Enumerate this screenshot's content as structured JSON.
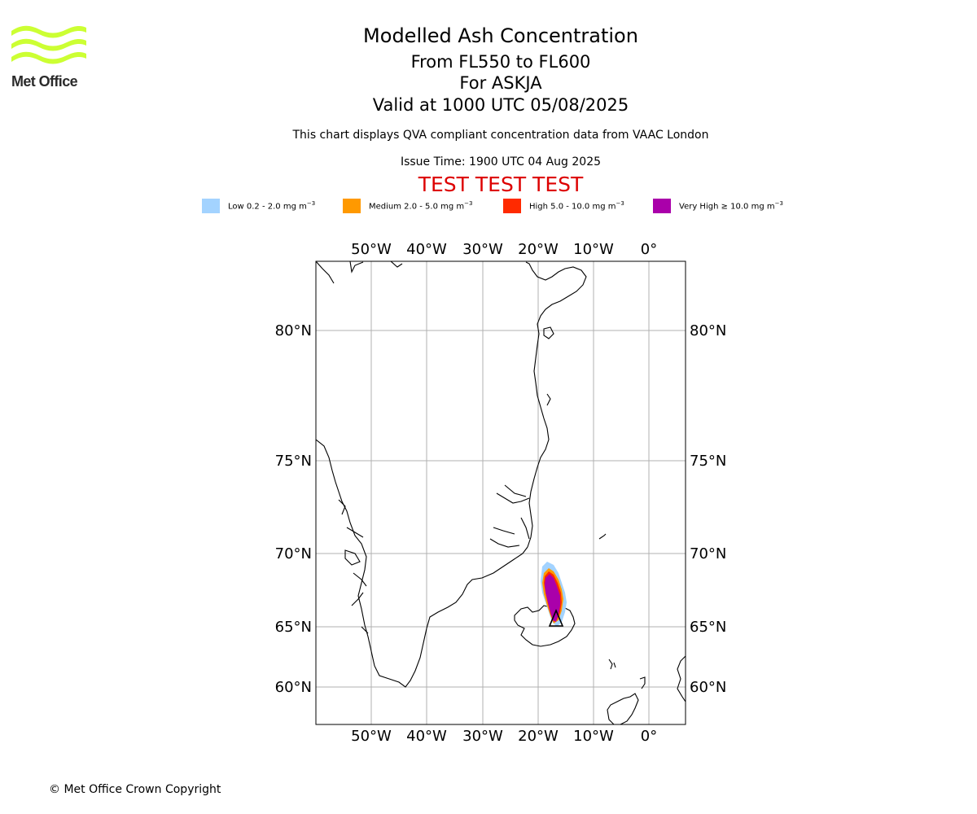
{
  "logo": {
    "text": "Met Office",
    "color": "#ccff33"
  },
  "header": {
    "title": "Modelled Ash Concentration",
    "levels": "From FL550 to FL600",
    "volcano": "For ASKJA",
    "valid": "Valid at 1000 UTC 05/08/2025",
    "description": "This chart displays QVA compliant concentration data from VAAC London",
    "issue_time": "Issue Time: 1900 UTC 04 Aug 2025",
    "test_banner": "TEST TEST TEST",
    "test_color": "#dd0000"
  },
  "legend": [
    {
      "label": "Low 0.2 - 2.0 mg m",
      "sup": "−3",
      "color": "#a3d3ff"
    },
    {
      "label": "Medium 2.0 - 5.0 mg m",
      "sup": "−3",
      "color": "#ff9900"
    },
    {
      "label": "High 5.0 - 10.0 mg m",
      "sup": "−3",
      "color": "#ff2a00"
    },
    {
      "label": "Very High  ≥  10.0 mg m",
      "sup": "−3",
      "color": "#aa00aa"
    }
  ],
  "map": {
    "lon_ticks": [
      "50°W",
      "40°W",
      "30°W",
      "20°W",
      "10°W",
      "0°"
    ],
    "lat_ticks": [
      "80°N",
      "75°N",
      "70°N",
      "65°N",
      "60°N"
    ],
    "volcano_marker": "triangle",
    "gridline_color": "#b0b0b0"
  },
  "footer": {
    "copyright": "© Met Office Crown Copyright"
  }
}
